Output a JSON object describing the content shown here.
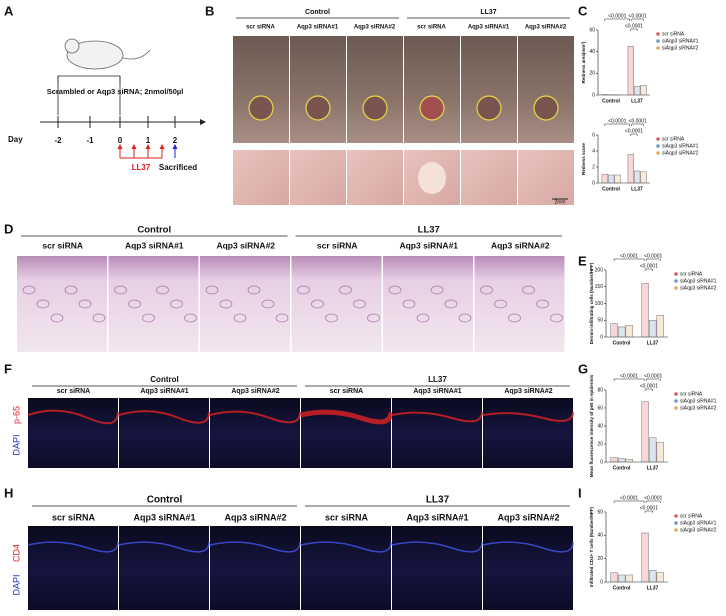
{
  "figure": {
    "panel_labels": [
      "A",
      "B",
      "C",
      "D",
      "E",
      "F",
      "G",
      "H",
      "I"
    ],
    "groups": [
      "Control",
      "LL37"
    ],
    "conditions": [
      "scr siRNA",
      "Aqp3 siRNA#1",
      "Aqp3 siRNA#2"
    ],
    "scale_bar": "2mm",
    "panel_a": {
      "treatment": "Scrambled or Aqp3 siRNA; 2nmol/50µl",
      "day_label": "Day",
      "days": [
        -2,
        -1,
        0,
        1,
        2
      ],
      "injection": "LL37",
      "endpoint": "Sacrificed"
    },
    "stain_f": [
      "DAPI",
      "p-65"
    ],
    "stain_h": [
      "DAPI",
      "CD4"
    ]
  },
  "chart_data": [
    {
      "type": "bar",
      "ylabel": "Redness area(mm²)",
      "categories": [
        "Control",
        "LL37"
      ],
      "series": [
        {
          "name": "scr siRNA",
          "color": "#e05a63",
          "values": [
            0.5,
            45
          ]
        },
        {
          "name": "siAqp3 siRNA#1",
          "color": "#6f98c4",
          "values": [
            0.3,
            8
          ]
        },
        {
          "name": "siAqp3 siRNA#2",
          "color": "#e8a860",
          "values": [
            0.3,
            9
          ]
        }
      ],
      "ylim": [
        0,
        60
      ],
      "yticks": [
        0,
        20,
        40,
        60
      ],
      "annotations": [
        "<0.0001",
        "<0.0001",
        "<0.0001"
      ]
    },
    {
      "type": "bar",
      "ylabel": "Redness score",
      "categories": [
        "Control",
        "LL37"
      ],
      "series": [
        {
          "name": "scr siRNA",
          "color": "#e05a63",
          "values": [
            1.1,
            3.6
          ]
        },
        {
          "name": "siAqp3 siRNA#1",
          "color": "#6f98c4",
          "values": [
            1.0,
            1.5
          ]
        },
        {
          "name": "siAqp3 siRNA#2",
          "color": "#e8a860",
          "values": [
            1.0,
            1.4
          ]
        }
      ],
      "ylim": [
        0,
        6
      ],
      "yticks": [
        0,
        2,
        4,
        6
      ],
      "annotations": [
        "<0.0001",
        "<0.0001",
        "<0.0001"
      ]
    },
    {
      "type": "bar",
      "ylabel": "Dermis-infiltrating cells (Number/HPF)",
      "categories": [
        "Control",
        "LL37"
      ],
      "series": [
        {
          "name": "scr siRNA",
          "color": "#e05a63",
          "values": [
            40,
            160
          ]
        },
        {
          "name": "siAqp3 siRNA#1",
          "color": "#6f98c4",
          "values": [
            30,
            50
          ]
        },
        {
          "name": "siAqp3 siRNA#2",
          "color": "#e8a860",
          "values": [
            35,
            65
          ]
        }
      ],
      "ylim": [
        0,
        200
      ],
      "yticks": [
        0,
        50,
        100,
        150,
        200
      ],
      "annotations": [
        "<0.0001",
        "<0.0001",
        "<0.0001"
      ]
    },
    {
      "type": "bar",
      "ylabel": "Mean fluorescence intensity of p65 in epidermis",
      "categories": [
        "Control",
        "LL37"
      ],
      "series": [
        {
          "name": "scr siRNA",
          "color": "#e05a63",
          "values": [
            5,
            67
          ]
        },
        {
          "name": "siAqp3 siRNA#1",
          "color": "#6f98c4",
          "values": [
            4,
            27
          ]
        },
        {
          "name": "siAqp3 siRNA#2",
          "color": "#e8a860",
          "values": [
            3,
            22
          ]
        }
      ],
      "ylim": [
        0,
        80
      ],
      "yticks": [
        0,
        20,
        40,
        60,
        80
      ],
      "annotations": [
        "<0.0001",
        "<0.0001",
        "<0.0001"
      ]
    },
    {
      "type": "bar",
      "ylabel": "Infiltrated CD4+ T cells (Number/HPF)",
      "categories": [
        "Control",
        "LL37"
      ],
      "series": [
        {
          "name": "scr siRNA",
          "color": "#e05a63",
          "values": [
            8,
            42
          ]
        },
        {
          "name": "siAqp3 siRNA#1",
          "color": "#6f98c4",
          "values": [
            6,
            10
          ]
        },
        {
          "name": "siAqp3 siRNA#2",
          "color": "#e8a860",
          "values": [
            6,
            8
          ]
        }
      ],
      "ylim": [
        0,
        60
      ],
      "yticks": [
        0,
        20,
        40,
        60
      ],
      "annotations": [
        "<0.0001",
        "<0.0001",
        "<0.0001"
      ]
    }
  ]
}
